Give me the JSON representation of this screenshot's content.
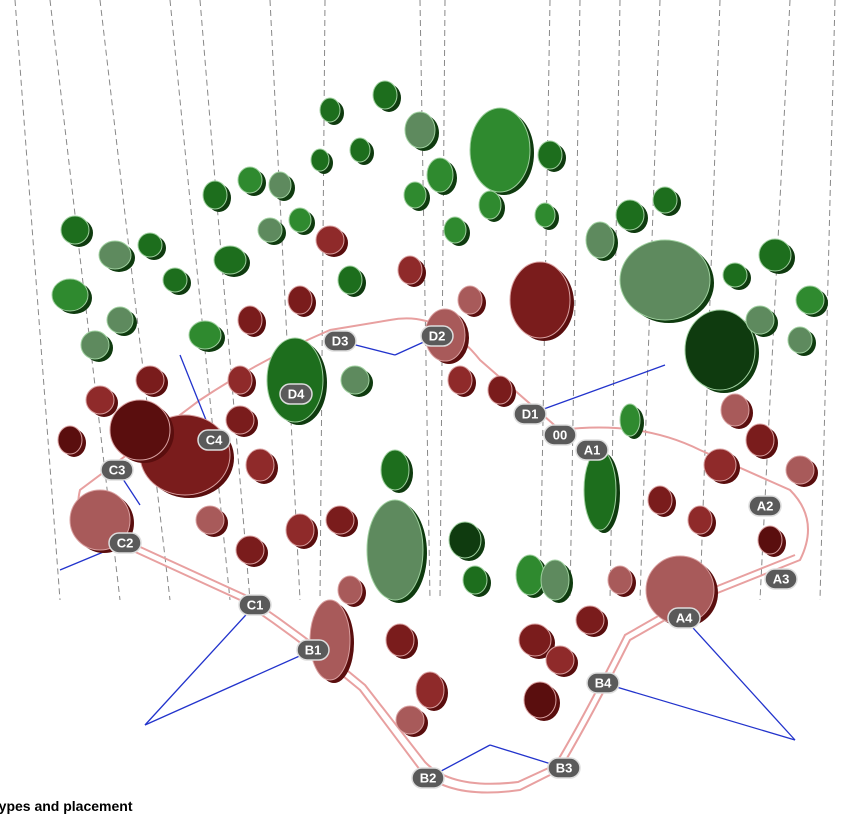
{
  "labels": [
    "D3",
    "D2",
    "D4",
    "D1",
    "00",
    "A1",
    "C4",
    "C3",
    "C2",
    "C1",
    "B1",
    "A2",
    "A3",
    "A4",
    "B4",
    "B2",
    "B3"
  ],
  "caption": "types and placement"
}
